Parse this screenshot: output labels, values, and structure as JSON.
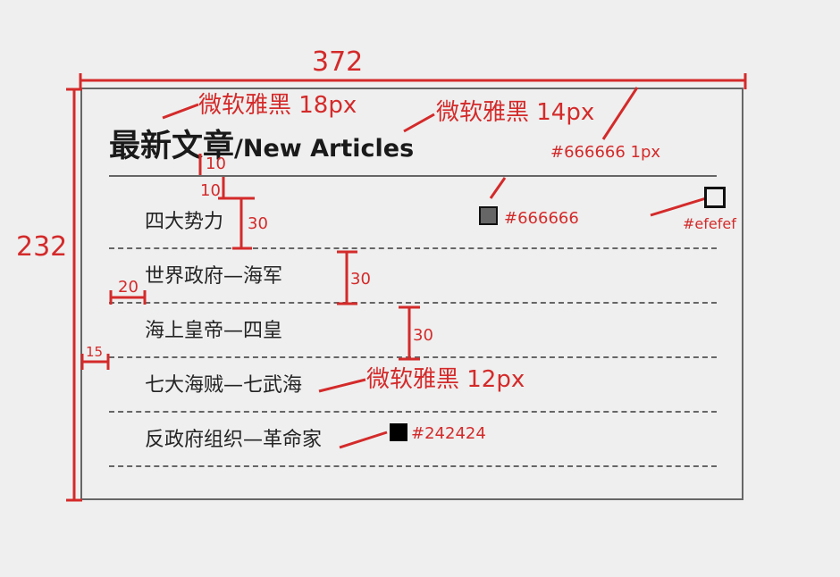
{
  "title": {
    "cn": "最新文章",
    "en": "/New Articles"
  },
  "articles": [
    "四大势力",
    "世界政府—海军",
    "海上皇帝—四皇",
    "七大海贼—七武海",
    "反政府组织—革命家"
  ],
  "annotations": {
    "width": "372",
    "height": "232",
    "title_cn_font": "微软雅黑  18px",
    "title_en_font": "微软雅黑  14px",
    "border_spec": "#666666 1px",
    "swatch_gray": "#666666",
    "swatch_bg": "#efefef",
    "list_font": "微软雅黑 12px",
    "swatch_text": "#242424",
    "gap_title_top": "10",
    "gap_rule_bottom": "10",
    "row_height_1": "30",
    "row_height_2": "30",
    "row_height_3": "30",
    "indent_text": "20",
    "indent_box": "15"
  },
  "colors": {
    "annotation": "#d42a2a",
    "border": "#666666",
    "background": "#efefef",
    "text": "#242424"
  }
}
